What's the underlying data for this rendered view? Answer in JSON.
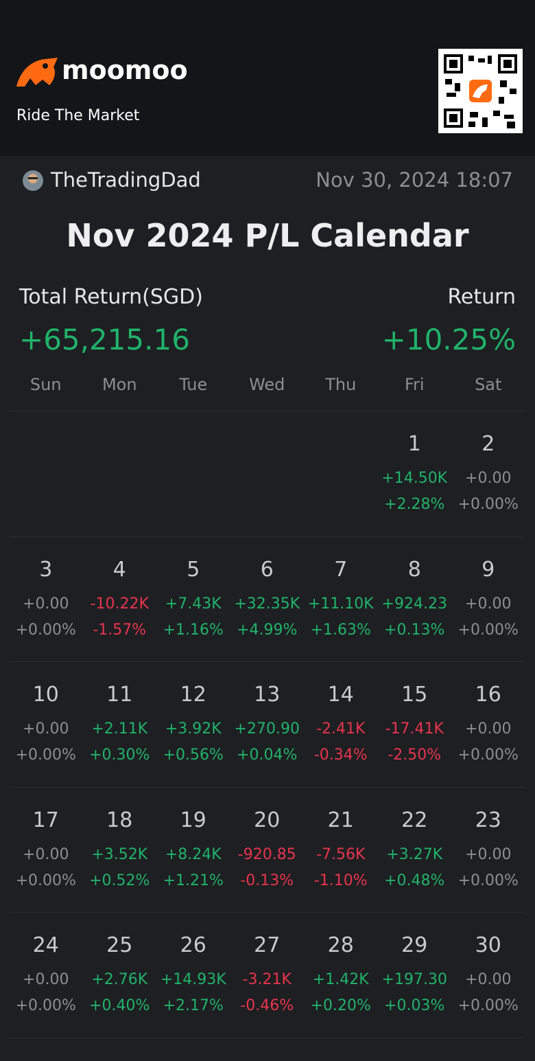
{
  "header": {
    "brand": "moomoo",
    "tagline": "Ride The Market"
  },
  "user": {
    "name": "TheTradingDad",
    "timestamp": "Nov 30, 2024 18:07"
  },
  "title": "Nov 2024 P/L Calendar",
  "summary": {
    "total_label": "Total Return(SGD)",
    "total_value": "+65,215.16",
    "return_label": "Return",
    "return_value": "+10.25%"
  },
  "weekdays": [
    "Sun",
    "Mon",
    "Tue",
    "Wed",
    "Thu",
    "Fri",
    "Sat"
  ],
  "weeks": [
    [
      null,
      null,
      null,
      null,
      null,
      {
        "day": "1",
        "pl": "+14.50K",
        "pct": "+2.28%"
      },
      {
        "day": "2",
        "pl": "+0.00",
        "pct": "+0.00%"
      }
    ],
    [
      {
        "day": "3",
        "pl": "+0.00",
        "pct": "+0.00%"
      },
      {
        "day": "4",
        "pl": "-10.22K",
        "pct": "-1.57%"
      },
      {
        "day": "5",
        "pl": "+7.43K",
        "pct": "+1.16%"
      },
      {
        "day": "6",
        "pl": "+32.35K",
        "pct": "+4.99%"
      },
      {
        "day": "7",
        "pl": "+11.10K",
        "pct": "+1.63%"
      },
      {
        "day": "8",
        "pl": "+924.23",
        "pct": "+0.13%"
      },
      {
        "day": "9",
        "pl": "+0.00",
        "pct": "+0.00%"
      }
    ],
    [
      {
        "day": "10",
        "pl": "+0.00",
        "pct": "+0.00%"
      },
      {
        "day": "11",
        "pl": "+2.11K",
        "pct": "+0.30%"
      },
      {
        "day": "12",
        "pl": "+3.92K",
        "pct": "+0.56%"
      },
      {
        "day": "13",
        "pl": "+270.90",
        "pct": "+0.04%"
      },
      {
        "day": "14",
        "pl": "-2.41K",
        "pct": "-0.34%"
      },
      {
        "day": "15",
        "pl": "-17.41K",
        "pct": "-2.50%"
      },
      {
        "day": "16",
        "pl": "+0.00",
        "pct": "+0.00%"
      }
    ],
    [
      {
        "day": "17",
        "pl": "+0.00",
        "pct": "+0.00%"
      },
      {
        "day": "18",
        "pl": "+3.52K",
        "pct": "+0.52%"
      },
      {
        "day": "19",
        "pl": "+8.24K",
        "pct": "+1.21%"
      },
      {
        "day": "20",
        "pl": "-920.85",
        "pct": "-0.13%"
      },
      {
        "day": "21",
        "pl": "-7.56K",
        "pct": "-1.10%"
      },
      {
        "day": "22",
        "pl": "+3.27K",
        "pct": "+0.48%"
      },
      {
        "day": "23",
        "pl": "+0.00",
        "pct": "+0.00%"
      }
    ],
    [
      {
        "day": "24",
        "pl": "+0.00",
        "pct": "+0.00%"
      },
      {
        "day": "25",
        "pl": "+2.76K",
        "pct": "+0.40%"
      },
      {
        "day": "26",
        "pl": "+14.93K",
        "pct": "+2.17%"
      },
      {
        "day": "27",
        "pl": "-3.21K",
        "pct": "-0.46%"
      },
      {
        "day": "28",
        "pl": "+1.42K",
        "pct": "+0.20%"
      },
      {
        "day": "29",
        "pl": "+197.30",
        "pct": "+0.03%"
      },
      {
        "day": "30",
        "pl": "+0.00",
        "pct": "+0.00%"
      }
    ]
  ]
}
